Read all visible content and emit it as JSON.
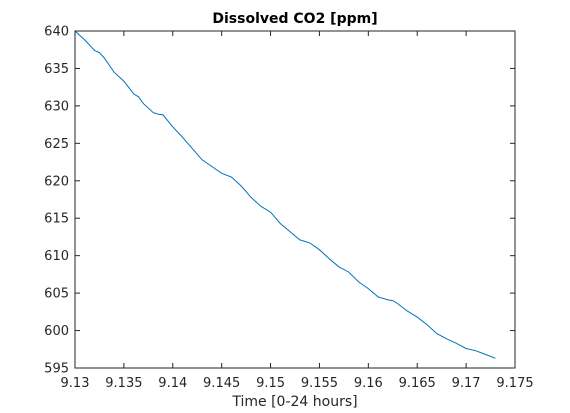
{
  "chart_data": {
    "type": "line",
    "title": "Dissolved CO2 [ppm]",
    "xlabel": "Time [0-24 hours]",
    "ylabel": "",
    "xlim": [
      9.13,
      9.175
    ],
    "ylim": [
      595,
      640
    ],
    "xticks": [
      9.13,
      9.135,
      9.14,
      9.145,
      9.15,
      9.155,
      9.16,
      9.165,
      9.17,
      9.175
    ],
    "xtick_labels": [
      "9.13",
      "9.135",
      "9.14",
      "9.145",
      "9.15",
      "9.155",
      "9.16",
      "9.165",
      "9.17",
      "9.175"
    ],
    "yticks": [
      595,
      600,
      605,
      610,
      615,
      620,
      625,
      630,
      635,
      640
    ],
    "ytick_labels": [
      "595",
      "600",
      "605",
      "610",
      "615",
      "620",
      "625",
      "630",
      "635",
      "640"
    ],
    "grid": false,
    "line_color": "#0072BD",
    "series": [
      {
        "x": [
          9.13,
          9.131,
          9.132,
          9.1325,
          9.133,
          9.134,
          9.135,
          9.136,
          9.1365,
          9.137,
          9.138,
          9.1385,
          9.139,
          9.14,
          9.141,
          9.142,
          9.143,
          9.144,
          9.145,
          9.146,
          9.147,
          9.148,
          9.149,
          9.15,
          9.151,
          9.152,
          9.153,
          9.154,
          9.155,
          9.156,
          9.157,
          9.158,
          9.159,
          9.16,
          9.161,
          9.162,
          9.1625,
          9.163,
          9.164,
          9.165,
          9.166,
          9.167,
          9.168,
          9.169,
          9.17,
          9.171,
          9.172,
          9.173
        ],
        "y": [
          640.0,
          638.8,
          637.4,
          637.1,
          636.4,
          634.5,
          633.3,
          631.6,
          631.2,
          630.3,
          629.1,
          628.9,
          628.8,
          627.2,
          625.8,
          624.3,
          622.8,
          621.9,
          621.0,
          620.5,
          619.3,
          617.8,
          616.6,
          615.8,
          614.3,
          613.2,
          612.1,
          611.7,
          610.8,
          609.6,
          608.5,
          607.8,
          606.5,
          605.6,
          604.5,
          604.1,
          604.0,
          603.6,
          602.6,
          601.8,
          600.8,
          599.6,
          598.9,
          598.3,
          597.6,
          597.3,
          596.8,
          596.3
        ]
      }
    ]
  }
}
